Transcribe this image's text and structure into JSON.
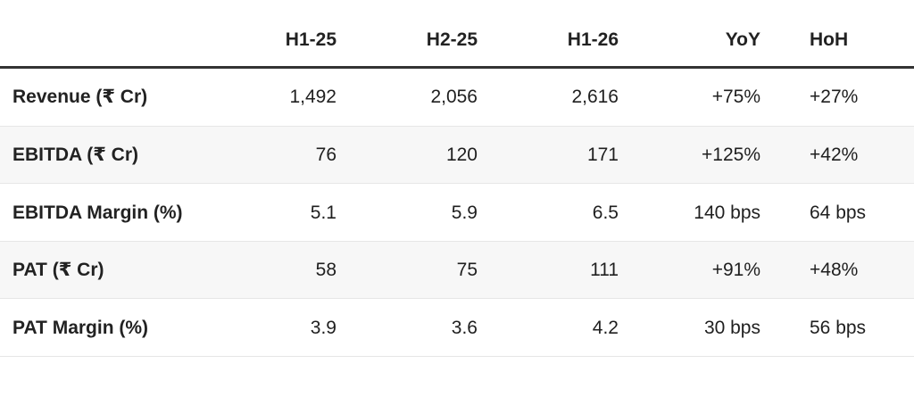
{
  "table": {
    "header": [
      "H1-25",
      "H2-25",
      "H1-26",
      "YoY",
      "HoH"
    ],
    "rows": [
      [
        "Revenue (₹ Cr)",
        "1,492",
        "2,056",
        "2,616",
        "+75%",
        "+27%"
      ],
      [
        "EBITDA (₹ Cr)",
        "76",
        "120",
        "171",
        "+125%",
        "+42%"
      ],
      [
        "EBITDA Margin (%)",
        "5.1",
        "5.9",
        "6.5",
        "140 bps",
        "64 bps"
      ],
      [
        "PAT (₹ Cr)",
        "58",
        "75",
        "111",
        "+91%",
        "+48%"
      ],
      [
        "PAT Margin (%)",
        "3.9",
        "3.6",
        "4.2",
        "30 bps",
        "56 bps"
      ]
    ]
  }
}
